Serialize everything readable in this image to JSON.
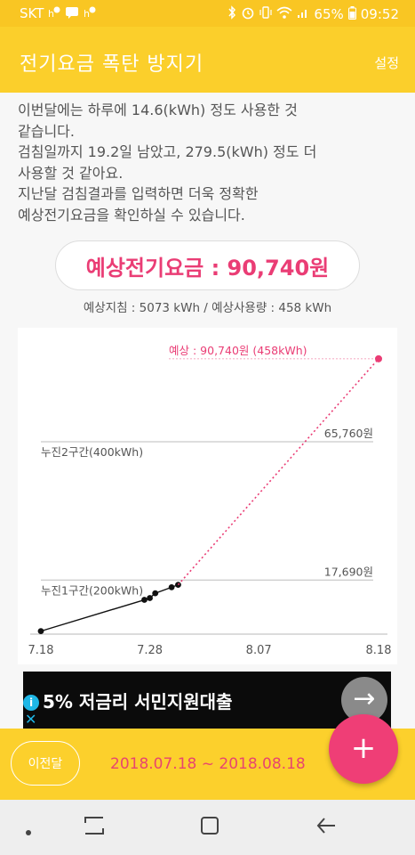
{
  "status_bar": {
    "carrier": "SKT",
    "left_icons": [
      "notification-icon",
      "message-icon",
      "notification-icon"
    ],
    "right_icons": [
      "bluetooth-icon",
      "alarm-icon",
      "vibrate-icon",
      "wifi-icon",
      "signal-icon"
    ],
    "battery": "65%",
    "time": "09:52"
  },
  "app_bar": {
    "title": "전기요금 폭탄 방지기",
    "settings_label": "설정"
  },
  "description": {
    "lines": [
      "이번달에는 하루에 14.6(kWh) 정도 사용한 것",
      "같습니다.",
      "검침일까지 19.2일 남았고, 279.5(kWh) 정도 더",
      "사용할 것 같아요.",
      "지난달 검침결과를 입력하면 더욱 정확한",
      "예상전기요금을 확인하실 수 있습니다."
    ]
  },
  "estimate": {
    "headline": "예상전기요금 : 90,740원",
    "subline": "예상지침 : 5073 kWh / 예상사용량 : 458 kWh"
  },
  "chart_data": {
    "type": "line",
    "x_tick_labels": [
      "7.18",
      "7.28",
      "8.07",
      "8.18"
    ],
    "x_range_days": [
      0,
      31
    ],
    "y_range_kwh": [
      0,
      480
    ],
    "series": [
      {
        "style": "solid",
        "color": "#111111",
        "points": [
          {
            "day": 0,
            "kwh": 5
          },
          {
            "day": 9.5,
            "kwh": 57
          },
          {
            "day": 10,
            "kwh": 60
          },
          {
            "day": 10.5,
            "kwh": 68
          },
          {
            "day": 12,
            "kwh": 78
          },
          {
            "day": 12.6,
            "kwh": 82
          }
        ]
      },
      {
        "style": "dotted",
        "color": "#ea3d75",
        "points": [
          {
            "day": 12.6,
            "kwh": 82
          },
          {
            "day": 31,
            "kwh": 458
          }
        ]
      }
    ],
    "reference_lines": [
      {
        "label": "누진1구간(200kWh)",
        "kwh": 90,
        "value_label": "17,690원"
      },
      {
        "label": "누진2구간(400kWh)",
        "kwh": 320,
        "value_label": "65,760원"
      }
    ],
    "forecast_label": "예상 : 90,740원 (458kWh)",
    "forecast_color": "#ea3d75"
  },
  "ad": {
    "text": "5% 저금리 서민지원대출",
    "info_icon": "info-icon",
    "close_icon": "close-icon",
    "arrow_icon": "arrow-right-icon"
  },
  "bottom_bar": {
    "prev_label": "이전달",
    "period": "2018.07.18 ~ 2018.08.18"
  },
  "fab": {
    "icon": "plus-icon",
    "glyph": "+"
  },
  "nav_bar": {
    "icons": [
      "dot-icon",
      "recent-apps-icon",
      "home-icon",
      "back-icon"
    ]
  },
  "colors": {
    "accent_yellow": "#fbcf2b",
    "accent_pink": "#ea3d75",
    "ad_background": "#0b0b0b"
  }
}
